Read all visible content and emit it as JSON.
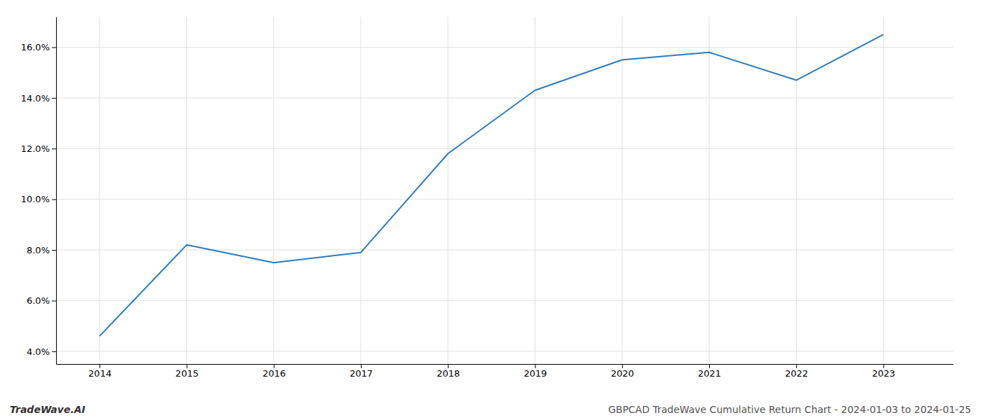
{
  "chart_data": {
    "type": "line",
    "x": [
      2014,
      2015,
      2016,
      2017,
      2018,
      2019,
      2020,
      2021,
      2022,
      2023
    ],
    "values": [
      4.6,
      8.2,
      7.5,
      7.9,
      11.8,
      14.3,
      15.5,
      15.8,
      14.7,
      16.5
    ],
    "color": "#2a7bbf",
    "xlim": [
      2013.5,
      2023.8
    ],
    "xticks": [
      2014,
      2015,
      2016,
      2017,
      2018,
      2019,
      2020,
      2021,
      2022,
      2023
    ],
    "ylim": [
      3.5,
      17.2
    ],
    "yticks": [
      {
        "value": 4.0,
        "label": "4.0%"
      },
      {
        "value": 6.0,
        "label": "6.0%"
      },
      {
        "value": 8.0,
        "label": "8.0%"
      },
      {
        "value": 10.0,
        "label": "10.0%"
      },
      {
        "value": 12.0,
        "label": "12.0%"
      },
      {
        "value": 14.0,
        "label": "14.0%"
      },
      {
        "value": 16.0,
        "label": "16.0%"
      }
    ],
    "grid": true,
    "annotations": [
      "TradeWave.AI",
      "GBPCAD TradeWave Cumulative Return Chart - 2024-01-03 to 2024-01-25"
    ]
  }
}
